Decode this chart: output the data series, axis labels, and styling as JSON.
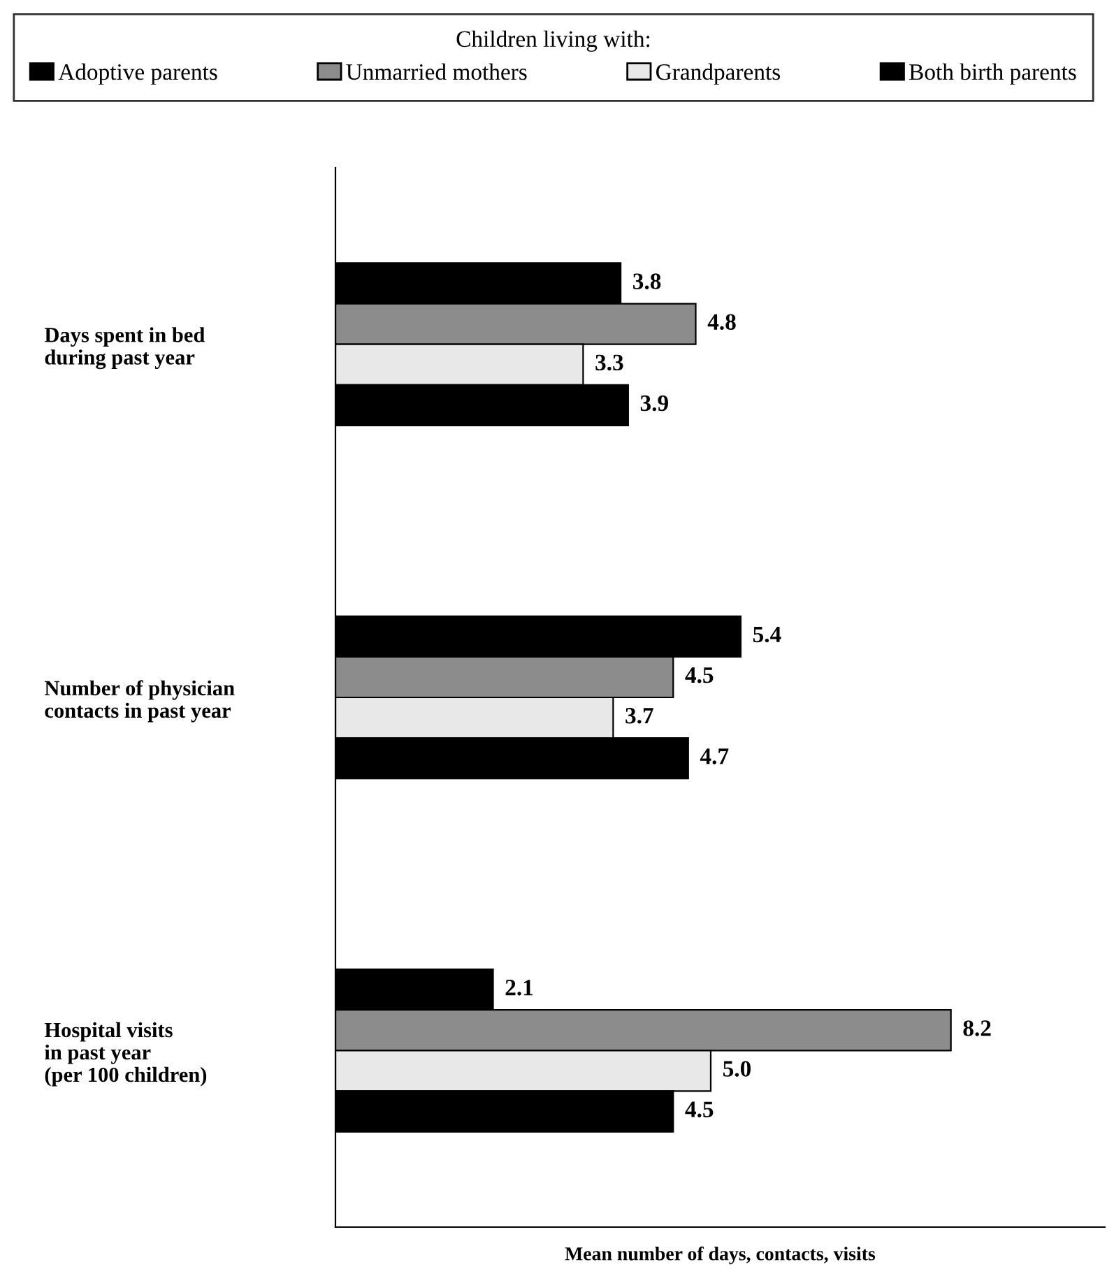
{
  "chart_data": {
    "type": "bar",
    "orientation": "horizontal",
    "legend_title": "Children living with:",
    "xlabel": "Mean number of days, contacts, visits",
    "categories": [
      "Days spent in bed\nduring past year",
      "Number of physician\ncontacts in past year",
      "Hospital visits\nin past year\n(per 100 children)"
    ],
    "series": [
      {
        "name": "Adoptive parents",
        "color": "#000000",
        "values": [
          3.8,
          5.4,
          2.1
        ],
        "value_labels": [
          "3.8",
          "5.4",
          "2.1"
        ]
      },
      {
        "name": "Unmarried mothers",
        "color": "#8c8c8c",
        "values": [
          4.8,
          4.5,
          8.2
        ],
        "value_labels": [
          "4.8",
          "4.5",
          "8.2"
        ]
      },
      {
        "name": "Grandparents",
        "color": "#e8e8e8",
        "values": [
          3.3,
          3.7,
          5.0
        ],
        "value_labels": [
          "3.3",
          "3.7",
          "5.0"
        ]
      },
      {
        "name": "Both birth parents",
        "color": "#000000",
        "values": [
          3.9,
          4.7,
          4.5
        ],
        "value_labels": [
          "3.9",
          "4.7",
          "4.5"
        ]
      }
    ],
    "legend": "top"
  }
}
